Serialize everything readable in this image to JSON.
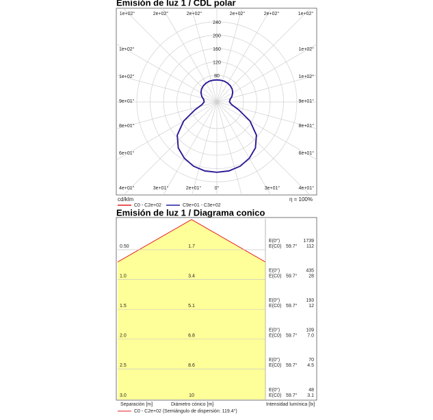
{
  "chart_data": {
    "type": "polar",
    "title": "Emisión de luz 1 / CDL polar",
    "unit_label": "cd/klm",
    "efficiency": "η = 100%",
    "angles": [
      0,
      10,
      20,
      30,
      40,
      50,
      60,
      70,
      80,
      90,
      100,
      110,
      120,
      130,
      140,
      150,
      160,
      170,
      180
    ],
    "series": [
      {
        "name": "C0 - C2e+02",
        "color": "#e31a1c",
        "values": [
          211,
          210,
          205,
          195,
          180,
          155,
          115,
          70,
          45,
          38,
          40,
          48,
          55,
          60,
          63,
          65,
          66,
          66,
          66
        ]
      },
      {
        "name": "C9e+01 - C3e+02",
        "color": "#1f1fa0",
        "values": [
          211,
          210,
          205,
          195,
          180,
          155,
          115,
          70,
          45,
          38,
          40,
          48,
          55,
          60,
          63,
          65,
          66,
          66,
          66
        ]
      }
    ],
    "rlim": [
      0,
      240
    ],
    "rticks": [
      80,
      120,
      160,
      200,
      240
    ],
    "angle_labels": {
      "top": [
        "1e+02°",
        "2e+02°",
        "2e+02°",
        "2e+02°",
        "2e+02°",
        "1e+02°"
      ],
      "left": [
        "1e+02°",
        "1e+02°",
        "9e+01°",
        "8e+01°",
        "6e+01°",
        "4e+01°"
      ],
      "right": [
        "1e+02°",
        "1e+02°",
        "9e+01°",
        "8e+01°",
        "6e+01°",
        "4e+01°"
      ],
      "bottom": [
        "3e+01°",
        "2e+01°",
        "0°",
        "3e+01°"
      ]
    }
  },
  "cone_diagram": {
    "title": "Emisión de luz 1 / Diagrama conico",
    "e0_label": "E(0°)",
    "ec0_label": "E(C0)",
    "angle": "59.7°",
    "rows": [
      {
        "height": "0.50",
        "diameter": "1.7",
        "e0": "1739",
        "ec0": "112"
      },
      {
        "height": "1.0",
        "diameter": "3.4",
        "e0": "435",
        "ec0": "28"
      },
      {
        "height": "1.5",
        "diameter": "5.1",
        "e0": "193",
        "ec0": "12"
      },
      {
        "height": "2.0",
        "diameter": "6.8",
        "e0": "109",
        "ec0": "7.0"
      },
      {
        "height": "2.5",
        "diameter": "8.6",
        "e0": "70",
        "ec0": "4.5"
      },
      {
        "height": "3.0",
        "diameter": "10",
        "e0": "48",
        "ec0": "3.1"
      }
    ],
    "separation_label": "Separación [m]",
    "diameter_label": "Diámetro cónico [m]",
    "intensity_label": "Intensidad lumínica [lx]",
    "legend": "C0 - C2e+02 (Semiángulo de dispersión: 119.4°)"
  }
}
